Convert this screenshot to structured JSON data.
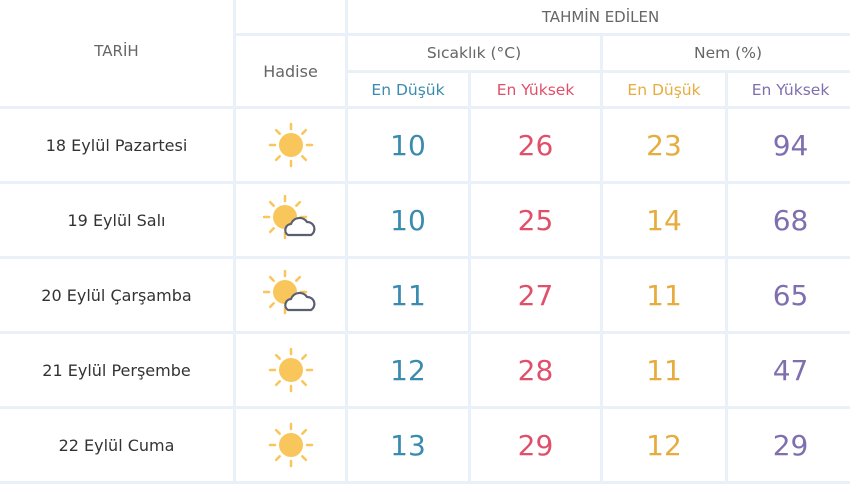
{
  "header": {
    "tarih": "TARİH",
    "hadise": "Hadise",
    "tahmin": "TAHMİN EDİLEN",
    "sicaklik": "Sıcaklık (°C)",
    "nem": "Nem (%)",
    "en_dusuk": "En Düşük",
    "en_yuksek": "En Yüksek"
  },
  "colors": {
    "temp_min": "#3a8bb0",
    "temp_max": "#e0506a",
    "hum_min": "#e7ac3e",
    "hum_max": "#7f6faf"
  },
  "rows": [
    {
      "date": "18 Eylül Pazartesi",
      "icon": "sun-icon",
      "tmin": "10",
      "tmax": "26",
      "hmin": "23",
      "hmax": "94"
    },
    {
      "date": "19 Eylül Salı",
      "icon": "partly-cloudy-icon",
      "tmin": "10",
      "tmax": "25",
      "hmin": "14",
      "hmax": "68"
    },
    {
      "date": "20 Eylül Çarşamba",
      "icon": "partly-cloudy-icon",
      "tmin": "11",
      "tmax": "27",
      "hmin": "11",
      "hmax": "65"
    },
    {
      "date": "21 Eylül Perşembe",
      "icon": "sun-icon",
      "tmin": "12",
      "tmax": "28",
      "hmin": "11",
      "hmax": "47"
    },
    {
      "date": "22 Eylül Cuma",
      "icon": "sun-icon",
      "tmin": "13",
      "tmax": "29",
      "hmin": "12",
      "hmax": "29"
    }
  ]
}
